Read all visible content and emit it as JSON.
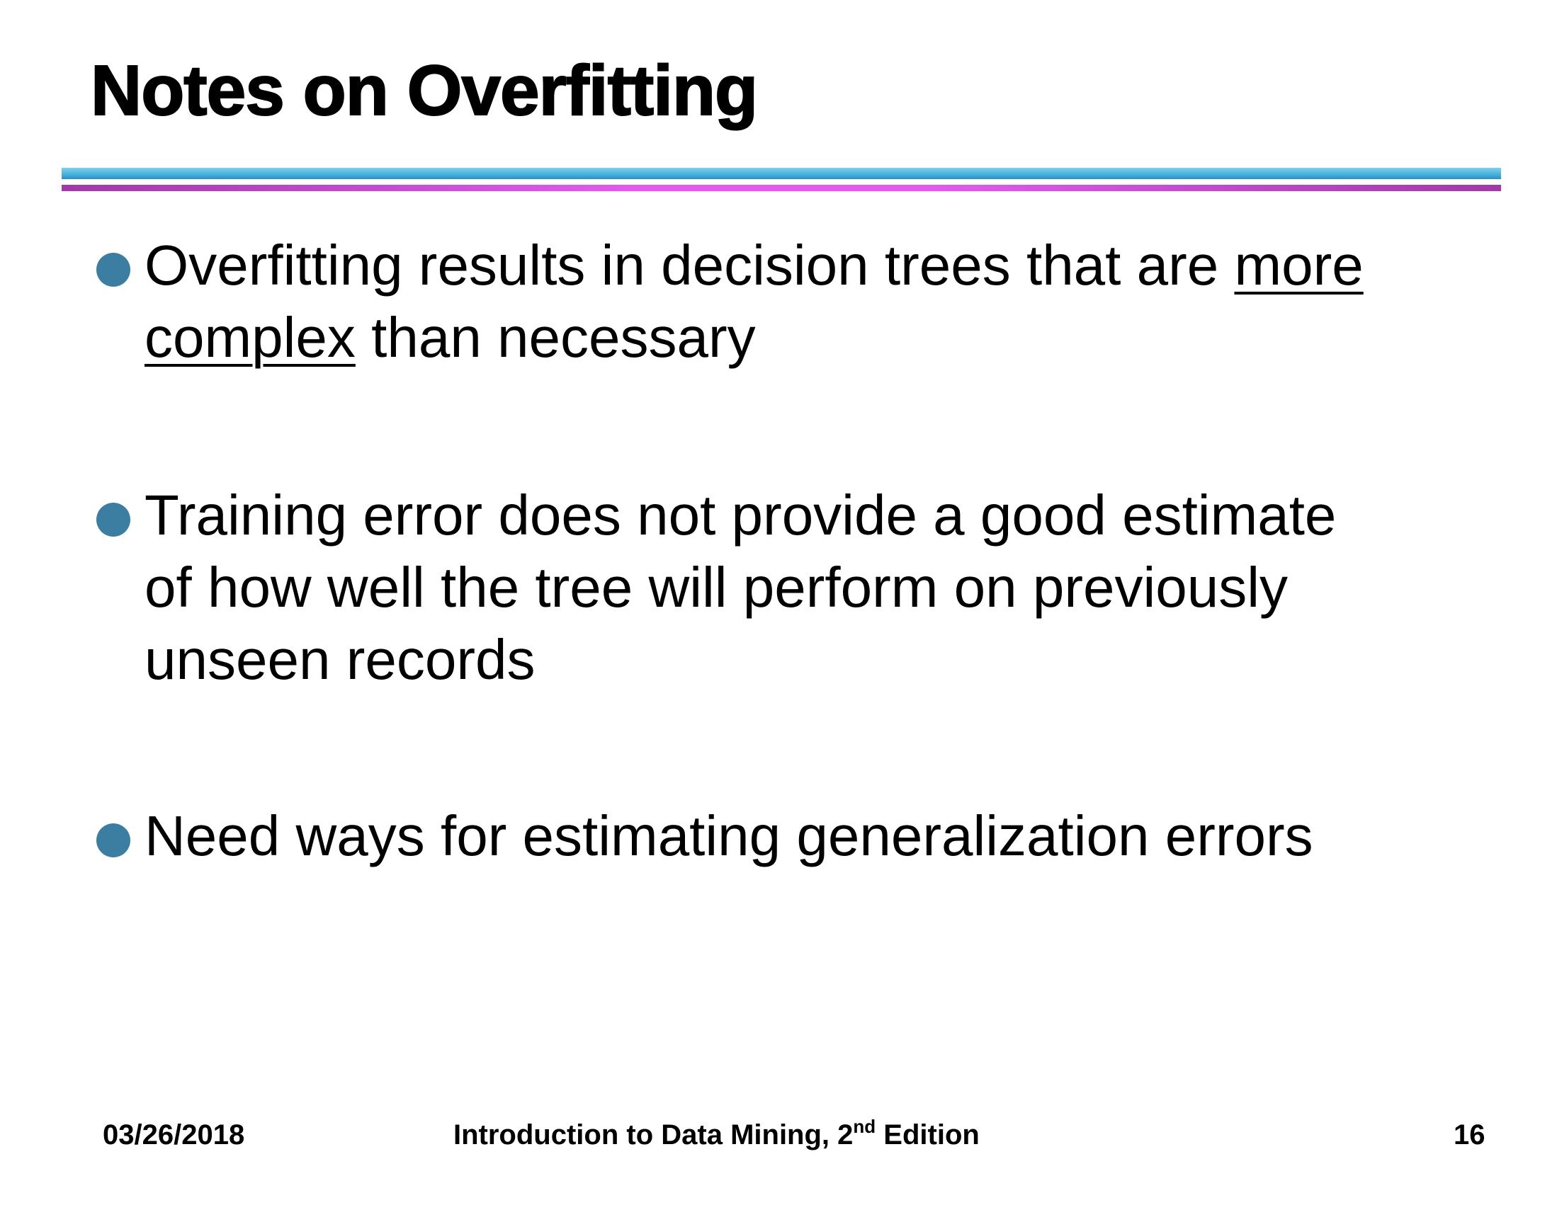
{
  "slide": {
    "title": "Notes on Overfitting",
    "bullets": [
      {
        "lines": [
          {
            "pre": "Overfitting results in decision trees that are ",
            "underlined": "more"
          },
          {
            "underlined": "complex",
            "post": " than necessary"
          }
        ]
      },
      {
        "lines": [
          {
            "pre": "Training error does not provide a good estimate"
          },
          {
            "pre": "of how well the tree will perform on previously"
          },
          {
            "pre": "unseen records"
          }
        ]
      },
      {
        "lines": [
          {
            "pre": "Need ways for estimating generalization errors"
          }
        ]
      }
    ],
    "footer": {
      "date": "03/26/2018",
      "book_title_pre": "Introduction to Data Mining, 2",
      "book_title_sup": "nd",
      "book_title_post": " Edition",
      "page_number": "16"
    },
    "colors": {
      "bullet_dot": "#3b7ea1",
      "rule_blue": "#4ab3de",
      "rule_magenta": "#e35af0"
    }
  }
}
